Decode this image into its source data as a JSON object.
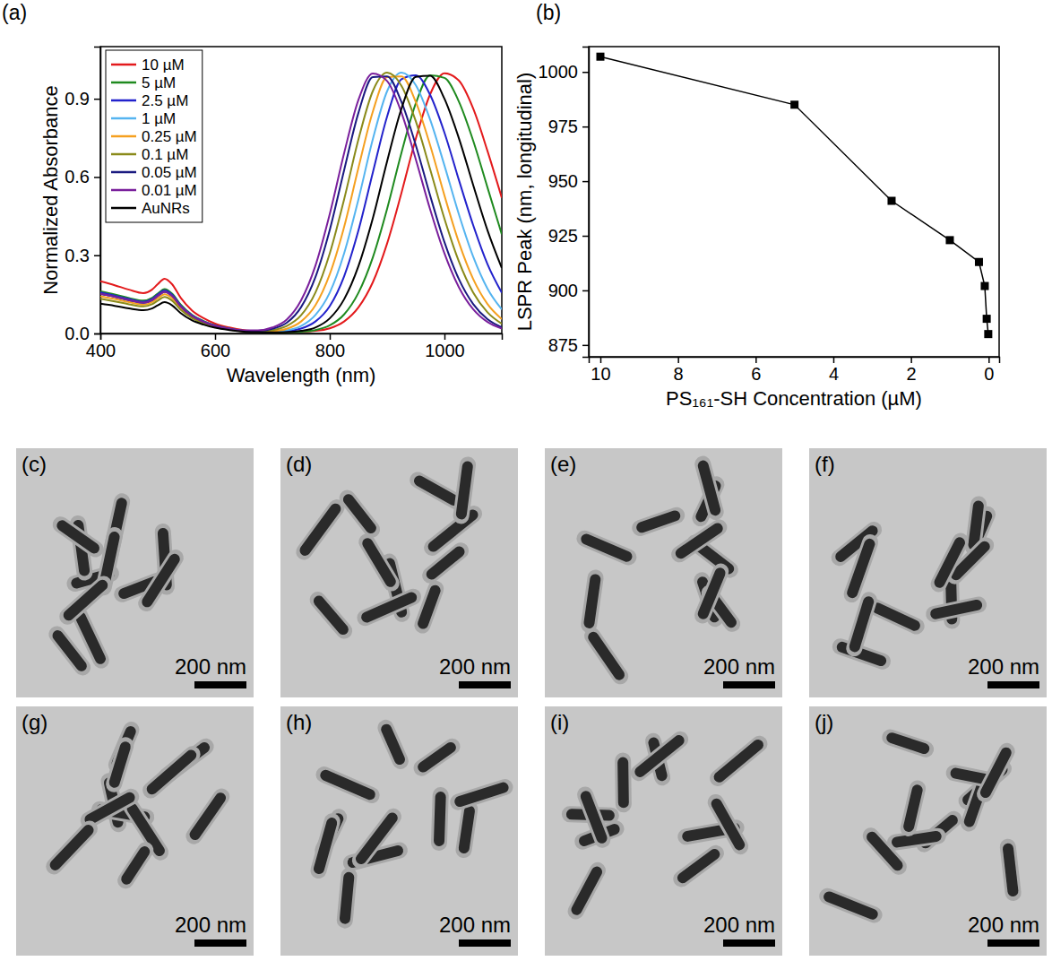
{
  "chart_data": [
    {
      "type": "line",
      "title": "(a)",
      "x_label": "Wavelength (nm)",
      "y_label": "Normalized Absorbance",
      "x": [
        400,
        425,
        450,
        475,
        490,
        500,
        512,
        525,
        540,
        560,
        580,
        600,
        625,
        650,
        675,
        700,
        725,
        750,
        775,
        800,
        825,
        850,
        875,
        900,
        925,
        950,
        975,
        1000,
        1025,
        1050,
        1075,
        1100
      ],
      "series": [
        {
          "name": "10 µM",
          "color": "#e31a1c",
          "values": [
            0.2,
            0.185,
            0.168,
            0.155,
            0.168,
            0.189,
            0.21,
            0.189,
            0.137,
            0.088,
            0.059,
            0.038,
            0.023,
            0.013,
            0.008,
            0.006,
            0.006,
            0.007,
            0.01,
            0.02,
            0.046,
            0.1,
            0.196,
            0.345,
            0.539,
            0.747,
            0.917,
            0.998,
            0.97,
            0.863,
            0.7,
            0.52
          ]
        },
        {
          "name": "5 µM",
          "color": "#1f8a1f",
          "values": [
            0.162,
            0.15,
            0.136,
            0.126,
            0.136,
            0.153,
            0.17,
            0.153,
            0.111,
            0.071,
            0.048,
            0.031,
            0.019,
            0.01,
            0.007,
            0.005,
            0.005,
            0.007,
            0.013,
            0.031,
            0.073,
            0.156,
            0.291,
            0.478,
            0.693,
            0.882,
            0.99,
            0.98,
            0.89,
            0.74,
            0.56,
            0.38
          ]
        },
        {
          "name": "2.5 µM",
          "color": "#2222cc",
          "values": [
            0.157,
            0.145,
            0.132,
            0.122,
            0.132,
            0.149,
            0.165,
            0.149,
            0.107,
            0.069,
            0.046,
            0.03,
            0.018,
            0.01,
            0.007,
            0.006,
            0.009,
            0.019,
            0.046,
            0.105,
            0.219,
            0.395,
            0.616,
            0.832,
            0.975,
            0.99,
            0.915,
            0.77,
            0.59,
            0.416,
            0.266,
            0.156
          ]
        },
        {
          "name": "1 µM",
          "color": "#55b4f0",
          "values": [
            0.152,
            0.141,
            0.128,
            0.118,
            0.128,
            0.144,
            0.16,
            0.144,
            0.104,
            0.067,
            0.045,
            0.029,
            0.018,
            0.01,
            0.008,
            0.007,
            0.012,
            0.029,
            0.071,
            0.157,
            0.307,
            0.514,
            0.744,
            0.929,
            1.0,
            0.952,
            0.82,
            0.644,
            0.458,
            0.295,
            0.172,
            0.092
          ]
        },
        {
          "name": "0.25 µM",
          "color": "#f5a020",
          "values": [
            0.143,
            0.132,
            0.12,
            0.111,
            0.12,
            0.135,
            0.15,
            0.135,
            0.098,
            0.063,
            0.042,
            0.027,
            0.017,
            0.009,
            0.007,
            0.009,
            0.018,
            0.046,
            0.108,
            0.227,
            0.408,
            0.635,
            0.85,
            0.983,
            0.986,
            0.888,
            0.722,
            0.529,
            0.35,
            0.209,
            0.113,
            0.055
          ]
        },
        {
          "name": "0.1 µM",
          "color": "#8a8a1a",
          "values": [
            0.133,
            0.123,
            0.112,
            0.104,
            0.112,
            0.126,
            0.14,
            0.126,
            0.091,
            0.059,
            0.039,
            0.025,
            0.015,
            0.009,
            0.008,
            0.013,
            0.029,
            0.07,
            0.157,
            0.307,
            0.514,
            0.744,
            0.929,
            1.0,
            0.95,
            0.814,
            0.63,
            0.44,
            0.277,
            0.157,
            0.081,
            0.037
          ]
        },
        {
          "name": "0.05 µM",
          "color": "#1a1a80",
          "values": [
            0.152,
            0.141,
            0.128,
            0.118,
            0.128,
            0.144,
            0.16,
            0.144,
            0.104,
            0.067,
            0.045,
            0.029,
            0.018,
            0.01,
            0.01,
            0.018,
            0.041,
            0.101,
            0.216,
            0.397,
            0.626,
            0.846,
            0.983,
            0.986,
            0.888,
            0.722,
            0.529,
            0.35,
            0.209,
            0.113,
            0.055,
            0.024
          ]
        },
        {
          "name": "0.01 µM",
          "color": "#7a1f9c",
          "values": [
            0.152,
            0.141,
            0.128,
            0.118,
            0.128,
            0.144,
            0.16,
            0.144,
            0.104,
            0.067,
            0.045,
            0.029,
            0.018,
            0.012,
            0.012,
            0.023,
            0.053,
            0.127,
            0.26,
            0.458,
            0.691,
            0.896,
            0.997,
            0.968,
            0.847,
            0.668,
            0.476,
            0.307,
            0.178,
            0.093,
            0.044,
            0.019
          ]
        },
        {
          "name": "AuNRs",
          "color": "#000000",
          "values": [
            0.114,
            0.106,
            0.096,
            0.089,
            0.096,
            0.108,
            0.12,
            0.108,
            0.078,
            0.05,
            0.034,
            0.022,
            0.013,
            0.007,
            0.005,
            0.004,
            0.005,
            0.01,
            0.023,
            0.058,
            0.131,
            0.258,
            0.441,
            0.66,
            0.862,
            0.984,
            0.988,
            0.9,
            0.75,
            0.57,
            0.396,
            0.251
          ]
        }
      ],
      "xlim": [
        400,
        1100
      ],
      "ylim": [
        0,
        1.1
      ],
      "xticks": [
        400,
        600,
        800,
        1000
      ],
      "yticks": [
        {
          "value": 0,
          "label": "0.0"
        },
        0.3,
        0.6,
        0.9
      ],
      "legend": "top-left"
    },
    {
      "type": "line",
      "title": "(b)",
      "x_label": "PS₁₆₁-SH Concentration (µM)",
      "y_label": "LSPR Peak (nm, longitudinal)",
      "x": [
        10,
        5,
        2.5,
        1,
        0.25,
        0.1,
        0.05,
        0.01
      ],
      "values": [
        1007,
        985,
        941,
        923,
        913,
        902,
        887,
        880
      ],
      "color": "#000000",
      "marker": "square",
      "line_style": "solid",
      "xlim": [
        10.3,
        -0.27
      ],
      "ylim": [
        869.6,
        1011.6
      ],
      "xticks": [
        10,
        8,
        6,
        4,
        2,
        0
      ],
      "yticks": [
        875,
        900,
        925,
        950,
        975,
        1000
      ]
    }
  ],
  "images": [
    {
      "label": "(c)",
      "scale_bar": "200 nm"
    },
    {
      "label": "(d)",
      "scale_bar": "200 nm"
    },
    {
      "label": "(e)",
      "scale_bar": "200 nm"
    },
    {
      "label": "(f)",
      "scale_bar": "200 nm"
    },
    {
      "label": "(g)",
      "scale_bar": "200 nm"
    },
    {
      "label": "(h)",
      "scale_bar": "200 nm"
    },
    {
      "label": "(i)",
      "scale_bar": "200 nm"
    },
    {
      "label": "(j)",
      "scale_bar": "200 nm"
    }
  ]
}
